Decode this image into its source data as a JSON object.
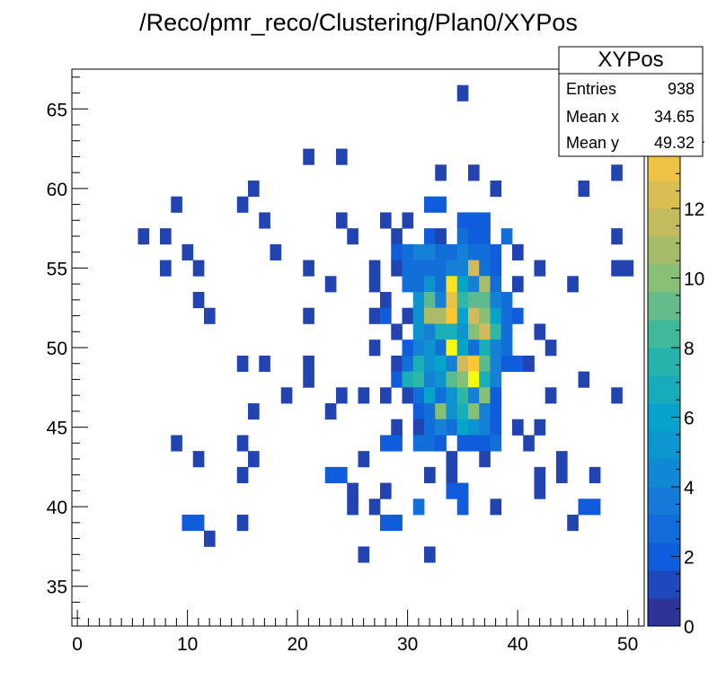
{
  "chart_data": {
    "type": "heatmap",
    "title": "/Reco/pmr_reco/Clustering/Plan0/XYPos",
    "xlim": [
      -0.5,
      51.5
    ],
    "ylim": [
      32.5,
      67.5
    ],
    "x_ticks": [
      0,
      10,
      20,
      30,
      40,
      50
    ],
    "y_ticks": [
      35,
      40,
      45,
      50,
      55,
      60,
      65
    ],
    "color_scale": {
      "min": 0,
      "max": 16,
      "ticks": [
        0,
        2,
        4,
        6,
        8,
        10,
        12,
        14
      ],
      "palette": "kBird",
      "stops": [
        "#352a87",
        "#0f5cdd",
        "#1481d6",
        "#06a4ca",
        "#2eb7a4",
        "#87bf77",
        "#d1bb59",
        "#fec832",
        "#f9fb0e"
      ]
    },
    "bins": [
      [
        35,
        66,
        1
      ],
      [
        21,
        62,
        1
      ],
      [
        24,
        62,
        1
      ],
      [
        33,
        61,
        1
      ],
      [
        36,
        61,
        1
      ],
      [
        49,
        61,
        1
      ],
      [
        16,
        60,
        1
      ],
      [
        38,
        60,
        1
      ],
      [
        46,
        60,
        1
      ],
      [
        9,
        59,
        1
      ],
      [
        15,
        59,
        1
      ],
      [
        32,
        59,
        2
      ],
      [
        33,
        59,
        2
      ],
      [
        17,
        58,
        1
      ],
      [
        24,
        58,
        1
      ],
      [
        28,
        58,
        1
      ],
      [
        30,
        58,
        1
      ],
      [
        35,
        58,
        2
      ],
      [
        36,
        58,
        2
      ],
      [
        37,
        58,
        2
      ],
      [
        6,
        57,
        1
      ],
      [
        8,
        57,
        1
      ],
      [
        25,
        57,
        1
      ],
      [
        29,
        57,
        1
      ],
      [
        32,
        57,
        2
      ],
      [
        33,
        57,
        1
      ],
      [
        35,
        57,
        3
      ],
      [
        36,
        57,
        2
      ],
      [
        37,
        57,
        2
      ],
      [
        39,
        57,
        3
      ],
      [
        49,
        57,
        1
      ],
      [
        10,
        56,
        1
      ],
      [
        18,
        56,
        1
      ],
      [
        29,
        56,
        2
      ],
      [
        30,
        56,
        3
      ],
      [
        31,
        56,
        4
      ],
      [
        32,
        56,
        4
      ],
      [
        33,
        56,
        3
      ],
      [
        34,
        56,
        3
      ],
      [
        35,
        56,
        4
      ],
      [
        36,
        56,
        3
      ],
      [
        37,
        56,
        3
      ],
      [
        38,
        56,
        2
      ],
      [
        40,
        56,
        1
      ],
      [
        8,
        55,
        1
      ],
      [
        11,
        55,
        1
      ],
      [
        21,
        55,
        1
      ],
      [
        27,
        55,
        1
      ],
      [
        29,
        55,
        1
      ],
      [
        30,
        55,
        3
      ],
      [
        31,
        55,
        3
      ],
      [
        32,
        55,
        3
      ],
      [
        33,
        55,
        3
      ],
      [
        34,
        55,
        4
      ],
      [
        35,
        55,
        4
      ],
      [
        36,
        55,
        12
      ],
      [
        37,
        55,
        3
      ],
      [
        38,
        55,
        2
      ],
      [
        42,
        55,
        1
      ],
      [
        49,
        55,
        1
      ],
      [
        50,
        55,
        1
      ],
      [
        23,
        54,
        1
      ],
      [
        27,
        54,
        1
      ],
      [
        30,
        54,
        3
      ],
      [
        31,
        54,
        3
      ],
      [
        32,
        54,
        5
      ],
      [
        33,
        54,
        3
      ],
      [
        34,
        54,
        15
      ],
      [
        35,
        54,
        6
      ],
      [
        36,
        54,
        4
      ],
      [
        37,
        54,
        11
      ],
      [
        38,
        54,
        3
      ],
      [
        40,
        54,
        1
      ],
      [
        45,
        54,
        1
      ],
      [
        11,
        53,
        1
      ],
      [
        28,
        53,
        1
      ],
      [
        31,
        53,
        5
      ],
      [
        32,
        53,
        9
      ],
      [
        33,
        53,
        4
      ],
      [
        34,
        53,
        13
      ],
      [
        35,
        53,
        8
      ],
      [
        36,
        53,
        9
      ],
      [
        37,
        53,
        9
      ],
      [
        38,
        53,
        4
      ],
      [
        39,
        53,
        3
      ],
      [
        12,
        52,
        1
      ],
      [
        21,
        52,
        1
      ],
      [
        27,
        52,
        1
      ],
      [
        28,
        52,
        2
      ],
      [
        30,
        52,
        1
      ],
      [
        31,
        52,
        5
      ],
      [
        32,
        52,
        11
      ],
      [
        33,
        52,
        11
      ],
      [
        34,
        52,
        14
      ],
      [
        35,
        52,
        6
      ],
      [
        36,
        52,
        12
      ],
      [
        37,
        52,
        10
      ],
      [
        38,
        52,
        6
      ],
      [
        39,
        52,
        3
      ],
      [
        40,
        52,
        2
      ],
      [
        29,
        51,
        1
      ],
      [
        31,
        51,
        5
      ],
      [
        32,
        51,
        4
      ],
      [
        33,
        51,
        7
      ],
      [
        34,
        51,
        7
      ],
      [
        35,
        51,
        5
      ],
      [
        36,
        51,
        10
      ],
      [
        37,
        51,
        12
      ],
      [
        38,
        51,
        8
      ],
      [
        39,
        51,
        3
      ],
      [
        42,
        51,
        1
      ],
      [
        27,
        50,
        1
      ],
      [
        30,
        50,
        2
      ],
      [
        31,
        50,
        4
      ],
      [
        32,
        50,
        5
      ],
      [
        33,
        50,
        3
      ],
      [
        34,
        50,
        16
      ],
      [
        35,
        50,
        6
      ],
      [
        36,
        50,
        3
      ],
      [
        37,
        50,
        7
      ],
      [
        38,
        50,
        4
      ],
      [
        39,
        50,
        3
      ],
      [
        43,
        50,
        1
      ],
      [
        15,
        49,
        1
      ],
      [
        17,
        49,
        1
      ],
      [
        21,
        49,
        1
      ],
      [
        29,
        49,
        1
      ],
      [
        30,
        49,
        3
      ],
      [
        31,
        49,
        7
      ],
      [
        32,
        49,
        5
      ],
      [
        33,
        49,
        6
      ],
      [
        34,
        49,
        4
      ],
      [
        35,
        49,
        12
      ],
      [
        36,
        49,
        14
      ],
      [
        37,
        49,
        9
      ],
      [
        38,
        49,
        4
      ],
      [
        39,
        49,
        2
      ],
      [
        40,
        49,
        2
      ],
      [
        41,
        49,
        1
      ],
      [
        21,
        48,
        1
      ],
      [
        29,
        48,
        2
      ],
      [
        30,
        48,
        7
      ],
      [
        31,
        48,
        8
      ],
      [
        32,
        48,
        4
      ],
      [
        33,
        48,
        5
      ],
      [
        34,
        48,
        9
      ],
      [
        35,
        48,
        10
      ],
      [
        36,
        48,
        16
      ],
      [
        37,
        48,
        7
      ],
      [
        38,
        48,
        4
      ],
      [
        46,
        48,
        1
      ],
      [
        19,
        47,
        1
      ],
      [
        24,
        47,
        1
      ],
      [
        26,
        47,
        1
      ],
      [
        28,
        47,
        1
      ],
      [
        30,
        47,
        1
      ],
      [
        31,
        47,
        3
      ],
      [
        32,
        47,
        6
      ],
      [
        33,
        47,
        3
      ],
      [
        34,
        47,
        5
      ],
      [
        35,
        47,
        8
      ],
      [
        36,
        47,
        4
      ],
      [
        37,
        47,
        10
      ],
      [
        38,
        47,
        2
      ],
      [
        43,
        47,
        1
      ],
      [
        49,
        47,
        1
      ],
      [
        16,
        46,
        1
      ],
      [
        23,
        46,
        1
      ],
      [
        31,
        46,
        2
      ],
      [
        32,
        46,
        3
      ],
      [
        33,
        46,
        10
      ],
      [
        34,
        46,
        5
      ],
      [
        35,
        46,
        7
      ],
      [
        36,
        46,
        10
      ],
      [
        37,
        46,
        4
      ],
      [
        38,
        46,
        2
      ],
      [
        29,
        45,
        1
      ],
      [
        31,
        45,
        1
      ],
      [
        32,
        45,
        3
      ],
      [
        33,
        45,
        4
      ],
      [
        34,
        45,
        3
      ],
      [
        35,
        45,
        6
      ],
      [
        36,
        45,
        5
      ],
      [
        37,
        45,
        4
      ],
      [
        38,
        45,
        2
      ],
      [
        40,
        45,
        1
      ],
      [
        42,
        45,
        1
      ],
      [
        9,
        44,
        1
      ],
      [
        15,
        44,
        1
      ],
      [
        28,
        44,
        2
      ],
      [
        29,
        44,
        2
      ],
      [
        31,
        44,
        3
      ],
      [
        32,
        44,
        3
      ],
      [
        33,
        44,
        2
      ],
      [
        35,
        44,
        2
      ],
      [
        36,
        44,
        2
      ],
      [
        37,
        44,
        2
      ],
      [
        38,
        44,
        3
      ],
      [
        41,
        44,
        1
      ],
      [
        11,
        43,
        1
      ],
      [
        16,
        43,
        1
      ],
      [
        26,
        43,
        1
      ],
      [
        34,
        43,
        1
      ],
      [
        37,
        43,
        1
      ],
      [
        44,
        43,
        1
      ],
      [
        15,
        42,
        1
      ],
      [
        23,
        42,
        2
      ],
      [
        24,
        42,
        2
      ],
      [
        32,
        42,
        1
      ],
      [
        34,
        42,
        1
      ],
      [
        42,
        42,
        1
      ],
      [
        44,
        42,
        1
      ],
      [
        47,
        42,
        1
      ],
      [
        25,
        41,
        1
      ],
      [
        28,
        41,
        1
      ],
      [
        34,
        41,
        2
      ],
      [
        35,
        41,
        2
      ],
      [
        42,
        41,
        1
      ],
      [
        25,
        40,
        1
      ],
      [
        27,
        40,
        1
      ],
      [
        31,
        40,
        3
      ],
      [
        35,
        40,
        2
      ],
      [
        38,
        40,
        1
      ],
      [
        46,
        40,
        2
      ],
      [
        47,
        40,
        2
      ],
      [
        10,
        39,
        2
      ],
      [
        11,
        39,
        2
      ],
      [
        15,
        39,
        1
      ],
      [
        28,
        39,
        2
      ],
      [
        29,
        39,
        2
      ],
      [
        45,
        39,
        1
      ],
      [
        12,
        38,
        1
      ],
      [
        26,
        37,
        1
      ],
      [
        32,
        37,
        1
      ]
    ]
  },
  "stats_box": {
    "title": "XYPos",
    "rows": [
      {
        "label": "Entries",
        "value": "938"
      },
      {
        "label": "Mean x",
        "value": "34.65"
      },
      {
        "label": "Mean y",
        "value": "49.32"
      }
    ]
  }
}
